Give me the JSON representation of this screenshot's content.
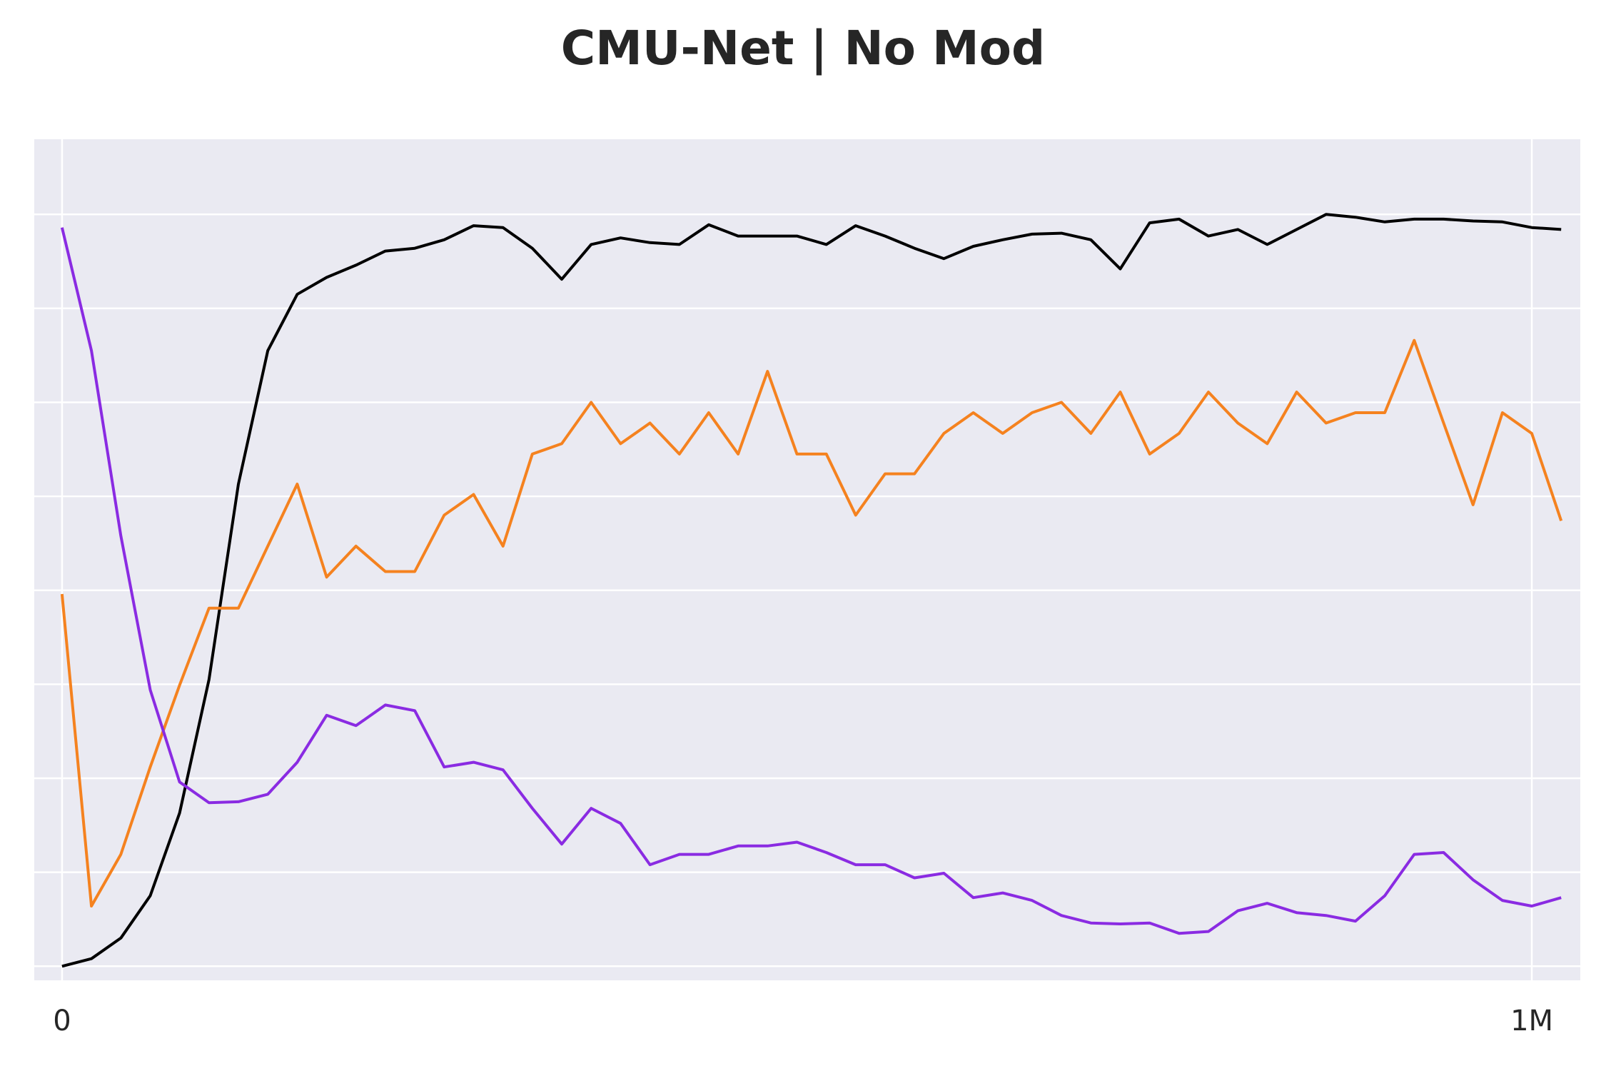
{
  "chart_data": {
    "type": "line",
    "title": "CMU-Net | No Mod",
    "x": [
      0,
      20000,
      40000,
      60000,
      80000,
      100000,
      120000,
      140000,
      160000,
      180000,
      200000,
      220000,
      240000,
      260000,
      280000,
      300000,
      320000,
      340000,
      360000,
      380000,
      400000,
      420000,
      440000,
      460000,
      480000,
      500000,
      520000,
      540000,
      560000,
      580000,
      600000,
      620000,
      640000,
      660000,
      680000,
      700000,
      720000,
      740000,
      760000,
      780000,
      800000,
      820000,
      840000,
      860000,
      880000,
      900000,
      920000,
      940000,
      960000,
      980000,
      1000000,
      1020000
    ],
    "series": [
      {
        "color": "#000000",
        "values": [
          0,
          0.08,
          0.3,
          0.75,
          1.63,
          3.05,
          5.13,
          6.55,
          7.15,
          7.33,
          7.46,
          7.61,
          7.64,
          7.73,
          7.88,
          7.86,
          7.64,
          7.31,
          7.68,
          7.75,
          7.7,
          7.68,
          7.89,
          7.77,
          7.77,
          7.77,
          7.68,
          7.88,
          7.77,
          7.64,
          7.53,
          7.66,
          7.73,
          7.79,
          7.8,
          7.73,
          7.42,
          7.91,
          7.95,
          7.77,
          7.84,
          7.68,
          7.84,
          8.0,
          7.97,
          7.92,
          7.95,
          7.95,
          7.93,
          7.92,
          7.86,
          7.84
        ]
      },
      {
        "color": "#f5821f",
        "values": [
          3.96,
          0.64,
          1.19,
          2.12,
          2.99,
          3.81,
          3.81,
          4.47,
          5.13,
          4.14,
          4.47,
          4.2,
          4.2,
          4.8,
          5.02,
          4.47,
          5.45,
          5.56,
          6.0,
          5.56,
          5.78,
          5.45,
          5.89,
          5.45,
          6.33,
          5.45,
          5.45,
          4.8,
          5.24,
          5.24,
          5.67,
          5.89,
          5.67,
          5.89,
          6.0,
          5.67,
          6.11,
          5.45,
          5.67,
          6.11,
          5.78,
          5.56,
          6.11,
          5.78,
          5.89,
          5.89,
          6.66,
          5.78,
          4.91,
          5.89,
          5.67,
          4.74
        ]
      },
      {
        "color": "#8a2be2",
        "values": [
          7.86,
          6.55,
          4.58,
          2.94,
          1.96,
          1.74,
          1.75,
          1.83,
          2.17,
          2.67,
          2.56,
          2.78,
          2.72,
          2.12,
          2.17,
          2.09,
          1.68,
          1.3,
          1.68,
          1.52,
          1.08,
          1.19,
          1.19,
          1.28,
          1.28,
          1.32,
          1.21,
          1.08,
          1.08,
          0.94,
          0.99,
          0.73,
          0.78,
          0.7,
          0.54,
          0.46,
          0.45,
          0.46,
          0.35,
          0.37,
          0.59,
          0.67,
          0.57,
          0.54,
          0.48,
          0.75,
          1.19,
          1.21,
          0.92,
          0.7,
          0.64,
          0.73
        ]
      }
    ],
    "xlim": [
      -18900,
      1033000
    ],
    "xticks": [
      0,
      {
        "value": 1000000,
        "label": "1M"
      }
    ],
    "ylim": [
      -0.15,
      8.8
    ],
    "yticks": [
      0,
      1,
      2,
      3,
      4,
      5,
      6,
      7,
      8
    ],
    "grid": true
  }
}
